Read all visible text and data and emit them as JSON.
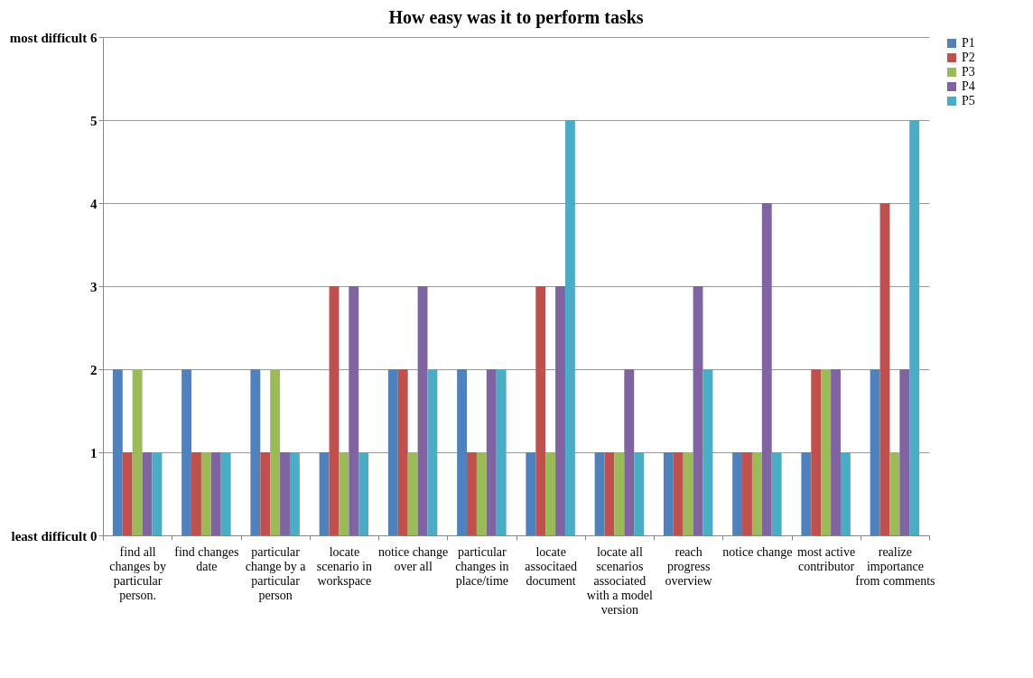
{
  "chart_data": {
    "type": "bar",
    "title": "How easy was it to perform tasks",
    "categories": [
      "find all changes by particular person.",
      "find changes date",
      "particular change by a particular person",
      "locate scenario in workspace",
      "notice change over all",
      "particular changes in place/time",
      "locate associtaed document",
      "locate all scenarios associated with a model version",
      "reach progress overview",
      "notice change",
      "most active contributor",
      "realize importance from comments"
    ],
    "series": [
      {
        "name": "P1",
        "color": "#4f81bd",
        "values": [
          2,
          2,
          2,
          1,
          2,
          2,
          1,
          1,
          1,
          1,
          1,
          2
        ]
      },
      {
        "name": "P2",
        "color": "#c0504d",
        "values": [
          1,
          1,
          1,
          3,
          2,
          1,
          3,
          1,
          1,
          1,
          2,
          4
        ]
      },
      {
        "name": "P3",
        "color": "#9bbb59",
        "values": [
          2,
          1,
          2,
          1,
          1,
          1,
          1,
          1,
          1,
          1,
          2,
          1
        ]
      },
      {
        "name": "P4",
        "color": "#8064a2",
        "values": [
          1,
          1,
          1,
          3,
          3,
          2,
          3,
          2,
          3,
          4,
          2,
          2
        ]
      },
      {
        "name": "P5",
        "color": "#4bacc6",
        "values": [
          1,
          1,
          1,
          1,
          2,
          2,
          5,
          1,
          2,
          1,
          1,
          5
        ]
      }
    ],
    "ylim": [
      0,
      6
    ],
    "yticks": [
      {
        "value": 0,
        "label": "least difficult 0"
      },
      1,
      2,
      3,
      4,
      5,
      {
        "value": 6,
        "label": "most difficult 6"
      }
    ],
    "grid": "y",
    "legend": "right"
  }
}
